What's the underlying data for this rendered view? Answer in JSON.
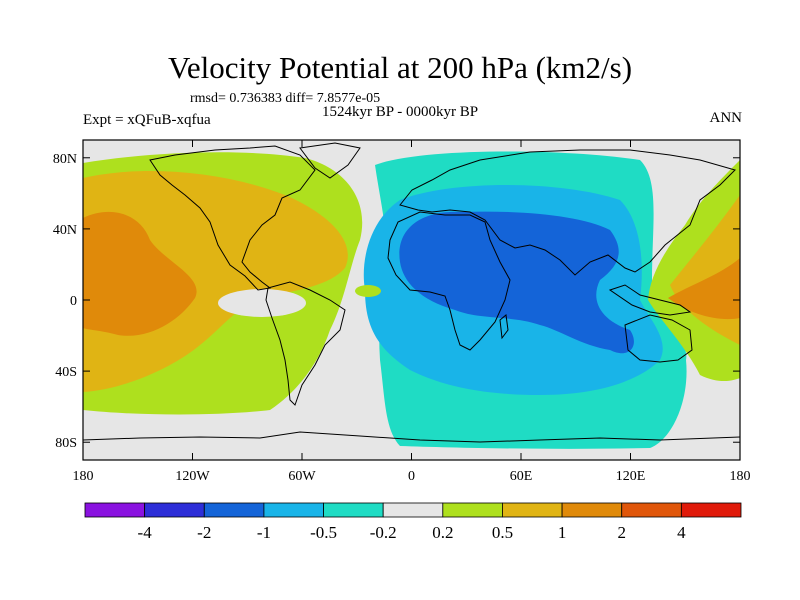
{
  "chart_data": {
    "type": "heatmap",
    "title": "Velocity Potential at 200 hPa (km2/s)",
    "stats_text": "rmsd= 0.736383 diff= 7.8577e-05",
    "period": "1524kyr BP - 0000kyr BP",
    "experiment": "Expt = xQFuB-xqfua",
    "season": "ANN",
    "projection": "cylindrical equidistant",
    "xlim": [
      -180,
      180
    ],
    "ylim": [
      -90,
      90
    ],
    "x_ticks": [
      {
        "value": -180,
        "label": "180"
      },
      {
        "value": -120,
        "label": "120W"
      },
      {
        "value": -60,
        "label": "60W"
      },
      {
        "value": 0,
        "label": "0"
      },
      {
        "value": 60,
        "label": "60E"
      },
      {
        "value": 120,
        "label": "120E"
      },
      {
        "value": 180,
        "label": "180"
      }
    ],
    "y_ticks": [
      {
        "value": 80,
        "label": "80N"
      },
      {
        "value": 40,
        "label": "40N"
      },
      {
        "value": 0,
        "label": "0"
      },
      {
        "value": -40,
        "label": "40S"
      },
      {
        "value": -80,
        "label": "80S"
      }
    ],
    "colorbar": {
      "levels": [
        -4,
        -2,
        -1,
        -0.5,
        -0.2,
        0.2,
        0.5,
        1,
        2,
        4
      ],
      "labels": [
        "-4",
        "-2",
        "-1",
        "-0.5",
        "-0.2",
        "0.2",
        "0.5",
        "1",
        "2",
        "4"
      ],
      "colors": [
        "#8a12e0",
        "#2d2ed8",
        "#1464d8",
        "#19b4e8",
        "#1fdcc4",
        "#e6e6e6",
        "#aee01e",
        "#e0b414",
        "#e08a0a",
        "#e0560a",
        "#e01a0a"
      ]
    },
    "regions": [
      {
        "name": "pacific-atlantic-positive",
        "level": "0.2 to 0.5",
        "lon": [
          -180,
          -15
        ],
        "lat": [
          -70,
          85
        ]
      },
      {
        "name": "pacific-positive-core",
        "level": "0.5 to 1",
        "lon": [
          -180,
          -25
        ],
        "lat": [
          -55,
          80
        ]
      },
      {
        "name": "east-pacific-max",
        "level": "1 to 2",
        "lon": [
          -180,
          -130
        ],
        "lat": [
          -35,
          50
        ]
      },
      {
        "name": "indo-atlantic-negative",
        "level": "-0.5 to -0.2",
        "lon": [
          -15,
          150
        ],
        "lat": [
          -85,
          85
        ]
      },
      {
        "name": "afro-eurasian-negative",
        "level": "-1 to -0.5",
        "lon": [
          -5,
          140
        ],
        "lat": [
          -60,
          75
        ]
      },
      {
        "name": "africa-indian-ocean-min",
        "level": "-2 to -1",
        "lon": [
          -5,
          115
        ],
        "lat": [
          -30,
          50
        ]
      },
      {
        "name": "west-pacific-positive",
        "level": "0.5 to 1",
        "lon": [
          140,
          180
        ],
        "lat": [
          -45,
          80
        ]
      },
      {
        "name": "west-pacific-max",
        "level": "1 to 2",
        "lon": [
          150,
          180
        ],
        "lat": [
          -25,
          25
        ]
      }
    ]
  }
}
